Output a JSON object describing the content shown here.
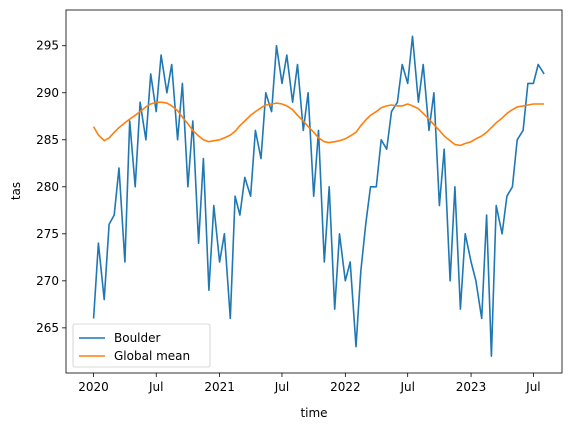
{
  "chart_data": {
    "type": "line",
    "title": "",
    "xlabel": "time",
    "ylabel": "tas",
    "xlim": [
      "2019-10-13",
      "2023-09-22"
    ],
    "ylim": [
      260.2,
      298.8
    ],
    "x_ticks": [
      {
        "date": "2020-01-01",
        "label": "2020"
      },
      {
        "date": "2020-07-01",
        "label": "Jul"
      },
      {
        "date": "2021-01-01",
        "label": "2021"
      },
      {
        "date": "2021-07-01",
        "label": "Jul"
      },
      {
        "date": "2022-01-01",
        "label": "2022"
      },
      {
        "date": "2022-07-01",
        "label": "Jul"
      },
      {
        "date": "2023-01-01",
        "label": "2023"
      },
      {
        "date": "2023-07-01",
        "label": "Jul"
      }
    ],
    "y_ticks": [
      265,
      270,
      275,
      280,
      285,
      290,
      295
    ],
    "grid": false,
    "legend_position": "lower-left",
    "series": [
      {
        "name": "Boulder",
        "color": "#1f77b4",
        "x": [
          "2020-01-01",
          "2020-01-15",
          "2020-02-01",
          "2020-02-15",
          "2020-03-01",
          "2020-03-15",
          "2020-04-01",
          "2020-04-15",
          "2020-05-01",
          "2020-05-15",
          "2020-06-01",
          "2020-06-15",
          "2020-07-01",
          "2020-07-15",
          "2020-08-01",
          "2020-08-15",
          "2020-09-01",
          "2020-09-15",
          "2020-10-01",
          "2020-10-15",
          "2020-11-01",
          "2020-11-15",
          "2020-12-01",
          "2020-12-15",
          "2021-01-01",
          "2021-01-15",
          "2021-02-01",
          "2021-02-15",
          "2021-03-01",
          "2021-03-15",
          "2021-04-01",
          "2021-04-15",
          "2021-05-01",
          "2021-05-15",
          "2021-06-01",
          "2021-06-15",
          "2021-07-01",
          "2021-07-15",
          "2021-08-01",
          "2021-08-15",
          "2021-09-01",
          "2021-09-15",
          "2021-10-01",
          "2021-10-15",
          "2021-11-01",
          "2021-11-15",
          "2021-12-01",
          "2021-12-15",
          "2022-01-01",
          "2022-01-15",
          "2022-02-01",
          "2022-02-15",
          "2022-03-01",
          "2022-03-15",
          "2022-04-01",
          "2022-04-15",
          "2022-05-01",
          "2022-05-15",
          "2022-06-01",
          "2022-06-15",
          "2022-07-01",
          "2022-07-15",
          "2022-08-01",
          "2022-08-15",
          "2022-09-01",
          "2022-09-15",
          "2022-10-01",
          "2022-10-15",
          "2022-11-01",
          "2022-11-15",
          "2022-12-01",
          "2022-12-15",
          "2023-01-01",
          "2023-01-15",
          "2023-02-01",
          "2023-02-15",
          "2023-03-01",
          "2023-03-15",
          "2023-04-01",
          "2023-04-15",
          "2023-05-01",
          "2023-05-15",
          "2023-06-01",
          "2023-06-15",
          "2023-07-01",
          "2023-07-15",
          "2023-08-01"
        ],
        "values": [
          266,
          274,
          268,
          276,
          277,
          282,
          272,
          287,
          280,
          289,
          285,
          292,
          288,
          294,
          290,
          293,
          285,
          291,
          280,
          287,
          274,
          283,
          269,
          278,
          272,
          275,
          266,
          279,
          277,
          281,
          279,
          286,
          283,
          290,
          288,
          295,
          291,
          294,
          289,
          293,
          286,
          290,
          279,
          286,
          272,
          280,
          267,
          275,
          270,
          272,
          263,
          271,
          276,
          280,
          280,
          285,
          284,
          288,
          289,
          293,
          291,
          296,
          289,
          293,
          286,
          290,
          278,
          284,
          270,
          280,
          267,
          275,
          272,
          270,
          266,
          277,
          262,
          278,
          275,
          279,
          280,
          285,
          286,
          291,
          291,
          293,
          292
        ]
      },
      {
        "name": "Global mean",
        "color": "#ff7f0e",
        "x": [
          "2020-01-01",
          "2020-01-15",
          "2020-02-01",
          "2020-02-15",
          "2020-03-01",
          "2020-03-15",
          "2020-04-01",
          "2020-04-15",
          "2020-05-01",
          "2020-05-15",
          "2020-06-01",
          "2020-06-15",
          "2020-07-01",
          "2020-07-15",
          "2020-08-01",
          "2020-08-15",
          "2020-09-01",
          "2020-09-15",
          "2020-10-01",
          "2020-10-15",
          "2020-11-01",
          "2020-11-15",
          "2020-12-01",
          "2020-12-15",
          "2021-01-01",
          "2021-01-15",
          "2021-02-01",
          "2021-02-15",
          "2021-03-01",
          "2021-03-15",
          "2021-04-01",
          "2021-04-15",
          "2021-05-01",
          "2021-05-15",
          "2021-06-01",
          "2021-06-15",
          "2021-07-01",
          "2021-07-15",
          "2021-08-01",
          "2021-08-15",
          "2021-09-01",
          "2021-09-15",
          "2021-10-01",
          "2021-10-15",
          "2021-11-01",
          "2021-11-15",
          "2021-12-01",
          "2021-12-15",
          "2022-01-01",
          "2022-01-15",
          "2022-02-01",
          "2022-02-15",
          "2022-03-01",
          "2022-03-15",
          "2022-04-01",
          "2022-04-15",
          "2022-05-01",
          "2022-05-15",
          "2022-06-01",
          "2022-06-15",
          "2022-07-01",
          "2022-07-15",
          "2022-08-01",
          "2022-08-15",
          "2022-09-01",
          "2022-09-15",
          "2022-10-01",
          "2022-10-15",
          "2022-11-01",
          "2022-11-15",
          "2022-12-01",
          "2022-12-15",
          "2023-01-01",
          "2023-01-15",
          "2023-02-01",
          "2023-02-15",
          "2023-03-01",
          "2023-03-15",
          "2023-04-01",
          "2023-04-15",
          "2023-05-01",
          "2023-05-15",
          "2023-06-01",
          "2023-06-15",
          "2023-07-01",
          "2023-07-15",
          "2023-08-01"
        ],
        "values": [
          286.4,
          285.5,
          284.9,
          285.2,
          285.8,
          286.3,
          286.8,
          287.2,
          287.6,
          288.0,
          288.5,
          288.8,
          289.0,
          289.0,
          288.9,
          288.6,
          288.1,
          287.4,
          286.7,
          286.0,
          285.4,
          285.0,
          284.8,
          284.9,
          285.0,
          285.2,
          285.5,
          285.9,
          286.5,
          287.0,
          287.6,
          288.0,
          288.4,
          288.7,
          288.8,
          288.9,
          288.8,
          288.6,
          288.2,
          287.6,
          287.0,
          286.4,
          285.8,
          285.2,
          284.8,
          284.7,
          284.8,
          284.9,
          285.1,
          285.4,
          285.8,
          286.5,
          287.1,
          287.6,
          288.0,
          288.4,
          288.6,
          288.7,
          288.6,
          288.6,
          288.8,
          288.6,
          288.3,
          287.8,
          287.2,
          286.6,
          286.0,
          285.4,
          284.9,
          284.5,
          284.4,
          284.6,
          284.8,
          285.1,
          285.4,
          285.8,
          286.3,
          286.8,
          287.3,
          287.8,
          288.2,
          288.5,
          288.6,
          288.7,
          288.8,
          288.8,
          288.8
        ]
      }
    ]
  }
}
